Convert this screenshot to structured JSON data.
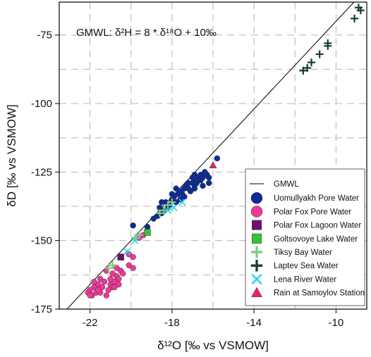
{
  "chart_data": {
    "type": "scatter",
    "annotation": "GMWL: δ²H  = 8 * δ¹⁸O + 10‰",
    "xlabel": "δ¹²O [‰ vs VSMOW]",
    "ylabel": "δD [‰ vs VSMOW]",
    "xlim": [
      -23.5,
      -8.5
    ],
    "ylim": [
      -175,
      -63
    ],
    "xticks": [
      -22,
      -18,
      -14,
      -10
    ],
    "yticks": [
      -75,
      -100,
      -125,
      -150,
      -175
    ],
    "grid": true,
    "legend_position": "bottom-right",
    "gmwl": {
      "name": "GMWL",
      "slope": 8,
      "intercept": 10,
      "color": "#000000"
    },
    "series": [
      {
        "name": "Uomullyakh Pore Water",
        "marker": "circle",
        "color": "#0d2b99",
        "points": [
          [
            -19.9,
            -144.5
          ],
          [
            -19.2,
            -145
          ],
          [
            -18.9,
            -142
          ],
          [
            -18.7,
            -141
          ],
          [
            -18.5,
            -140
          ],
          [
            -18.4,
            -139
          ],
          [
            -18.6,
            -138
          ],
          [
            -18.2,
            -138
          ],
          [
            -18.1,
            -137
          ],
          [
            -18.3,
            -136
          ],
          [
            -18.0,
            -135
          ],
          [
            -17.8,
            -136
          ],
          [
            -17.9,
            -134
          ],
          [
            -17.7,
            -133
          ],
          [
            -17.5,
            -133
          ],
          [
            -17.6,
            -132
          ],
          [
            -17.4,
            -131
          ],
          [
            -17.2,
            -131
          ],
          [
            -17.3,
            -130
          ],
          [
            -17.1,
            -132
          ],
          [
            -17.0,
            -129
          ],
          [
            -16.9,
            -130
          ],
          [
            -16.8,
            -128
          ],
          [
            -16.7,
            -127
          ],
          [
            -16.9,
            -126
          ],
          [
            -16.6,
            -126
          ],
          [
            -16.5,
            -127
          ],
          [
            -16.4,
            -125
          ],
          [
            -16.3,
            -126
          ],
          [
            -16.6,
            -128
          ],
          [
            -16.2,
            -127
          ],
          [
            -16.8,
            -129
          ],
          [
            -17.2,
            -129
          ],
          [
            -16.9,
            -131
          ],
          [
            -16.2,
            -129
          ],
          [
            -17.6,
            -135
          ],
          [
            -18.0,
            -133
          ],
          [
            -18.5,
            -136
          ],
          [
            -17.4,
            -134
          ],
          [
            -16.5,
            -130
          ],
          [
            -17.8,
            -131
          ],
          [
            -17.0,
            -127
          ],
          [
            -15.8,
            -120
          ]
        ]
      },
      {
        "name": "Polar Fox Pore Water",
        "marker": "circle",
        "color": "#f0379a",
        "points": [
          [
            -21.2,
            -161
          ],
          [
            -20.9,
            -162
          ],
          [
            -20.5,
            -161
          ],
          [
            -21.5,
            -164
          ],
          [
            -21.6,
            -166
          ],
          [
            -21.8,
            -167
          ],
          [
            -22.0,
            -168
          ],
          [
            -21.4,
            -167
          ],
          [
            -21.0,
            -166
          ],
          [
            -20.8,
            -165
          ],
          [
            -20.7,
            -163
          ],
          [
            -21.3,
            -165
          ],
          [
            -20.6,
            -164
          ],
          [
            -20.9,
            -167
          ],
          [
            -21.7,
            -169
          ],
          [
            -22.1,
            -169
          ],
          [
            -21.9,
            -170
          ],
          [
            -21.1,
            -168
          ],
          [
            -20.4,
            -162
          ],
          [
            -20.7,
            -160
          ],
          [
            -20.1,
            -159
          ],
          [
            -19.9,
            -160
          ],
          [
            -20.1,
            -155
          ],
          [
            -19.9,
            -156
          ],
          [
            -21.5,
            -169
          ],
          [
            -20.8,
            -167
          ],
          [
            -21.2,
            -170
          ],
          [
            -20.6,
            -166
          ],
          [
            -22.0,
            -170
          ],
          [
            -21.6,
            -168
          ],
          [
            -21.0,
            -164
          ],
          [
            -19.4,
            -148
          ],
          [
            -19.6,
            -149
          ],
          [
            -21.8,
            -165
          ]
        ]
      },
      {
        "name": "Polar Fox Lagoon Water",
        "marker": "square",
        "color": "#6b126b",
        "points": [
          [
            -20.5,
            -156
          ]
        ]
      },
      {
        "name": "Goltsovoye Lake Water",
        "marker": "square",
        "color": "#35c435",
        "points": [
          [
            -19.2,
            -147
          ]
        ]
      },
      {
        "name": "Tiksy Bay Water",
        "marker": "plus",
        "color": "#7ecb7a",
        "points": [
          [
            -21.1,
            -160
          ],
          [
            -20.9,
            -159
          ],
          [
            -19.8,
            -149
          ],
          [
            -19.6,
            -148
          ],
          [
            -18.6,
            -140
          ],
          [
            -18.4,
            -139
          ],
          [
            -18.0,
            -136
          ],
          [
            -18.2,
            -137
          ]
        ]
      },
      {
        "name": "Laptev Sea Water",
        "marker": "plus",
        "color": "#163a3a",
        "points": [
          [
            -11.6,
            -88
          ],
          [
            -11.4,
            -87
          ],
          [
            -11.2,
            -85
          ],
          [
            -10.8,
            -82
          ],
          [
            -10.4,
            -79
          ],
          [
            -10.4,
            -78
          ],
          [
            -9.1,
            -69
          ],
          [
            -8.9,
            -65
          ],
          [
            -8.8,
            -66
          ]
        ]
      },
      {
        "name": "Lena River Water",
        "marker": "x",
        "color": "#22d6ee",
        "points": [
          [
            -20.2,
            -154
          ],
          [
            -19.8,
            -150
          ],
          [
            -18.2,
            -139
          ],
          [
            -17.9,
            -138
          ],
          [
            -17.5,
            -136
          ]
        ]
      },
      {
        "name": "Rain at Samoylov Station",
        "marker": "triangle",
        "color": "#e8235a",
        "points": [
          [
            -16.0,
            -122.5
          ]
        ]
      }
    ]
  }
}
